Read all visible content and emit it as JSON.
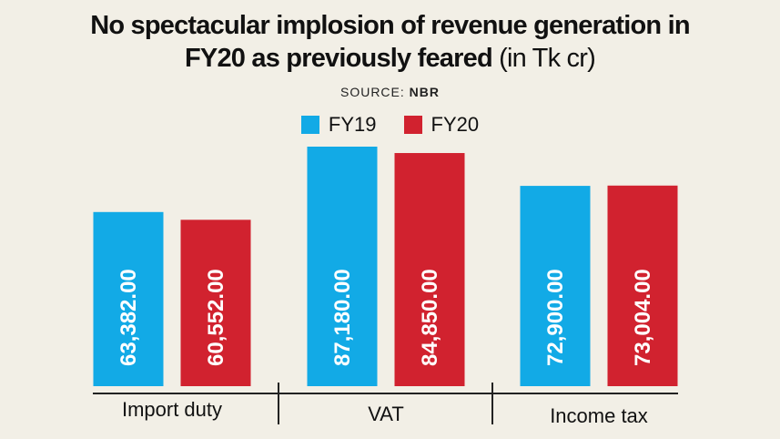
{
  "title": {
    "line1": "No spectacular implosion of revenue generation in",
    "line2": "FY20 as previously feared",
    "unit": "(in Tk cr)"
  },
  "source": {
    "label": "SOURCE:",
    "value": "NBR"
  },
  "colors": {
    "fy19": "#12aae6",
    "fy20": "#d1222f"
  },
  "chart_data": {
    "type": "bar",
    "categories": [
      "Import duty",
      "VAT",
      "Income tax"
    ],
    "series": [
      {
        "name": "FY19",
        "values": [
          63382,
          87180,
          72900
        ],
        "labels": [
          "63,382.00",
          "87,180.00",
          "72,900.00"
        ]
      },
      {
        "name": "FY20",
        "values": [
          60552,
          84850,
          73004
        ],
        "labels": [
          "60,552.00",
          "84,850.00",
          "73,004.00"
        ]
      }
    ],
    "legend": "top-center",
    "grid": false
  }
}
